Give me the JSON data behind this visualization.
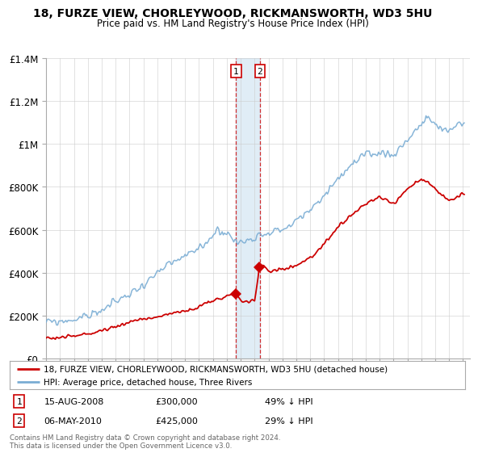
{
  "title": "18, FURZE VIEW, CHORLEYWOOD, RICKMANSWORTH, WD3 5HU",
  "subtitle": "Price paid vs. HM Land Registry's House Price Index (HPI)",
  "legend_line1": "18, FURZE VIEW, CHORLEYWOOD, RICKMANSWORTH, WD3 5HU (detached house)",
  "legend_line2": "HPI: Average price, detached house, Three Rivers",
  "footer": "Contains HM Land Registry data © Crown copyright and database right 2024.\nThis data is licensed under the Open Government Licence v3.0.",
  "transaction1": {
    "label": "1",
    "date": "15-AUG-2008",
    "price": "£300,000",
    "hpi": "49% ↓ HPI"
  },
  "transaction2": {
    "label": "2",
    "date": "06-MAY-2010",
    "price": "£425,000",
    "hpi": "29% ↓ HPI"
  },
  "hpi_color": "#7aadd4",
  "price_color": "#cc0000",
  "marker_color": "#cc0000",
  "vline_color": "#cc0000",
  "shade_color": "#c8dff0",
  "bg_color": "#ffffff",
  "grid_color": "#cccccc",
  "ylim": [
    0,
    1400000
  ],
  "yticks": [
    0,
    200000,
    400000,
    600000,
    800000,
    1000000,
    1200000,
    1400000
  ],
  "ytick_labels": [
    "£0",
    "£200K",
    "£400K",
    "£600K",
    "£800K",
    "£1M",
    "£1.2M",
    "£1.4M"
  ],
  "year_start": 1995,
  "year_end": 2025,
  "hpi_anchors_x": [
    1995.0,
    1996.0,
    1997.0,
    1998.0,
    1999.0,
    2000.0,
    2001.5,
    2002.5,
    2003.5,
    2004.5,
    2005.5,
    2006.5,
    2007.3,
    2008.0,
    2008.7,
    2009.3,
    2010.0,
    2010.5,
    2011.0,
    2012.0,
    2013.0,
    2014.0,
    2015.0,
    2016.0,
    2017.0,
    2017.8,
    2018.5,
    2019.0,
    2020.0,
    2021.0,
    2021.8,
    2022.5,
    2023.0,
    2023.5,
    2024.0,
    2024.5,
    2025.0
  ],
  "hpi_anchors_y": [
    170000,
    172000,
    182000,
    200000,
    225000,
    265000,
    320000,
    370000,
    420000,
    460000,
    490000,
    540000,
    600000,
    585000,
    540000,
    545000,
    570000,
    580000,
    590000,
    600000,
    640000,
    690000,
    760000,
    840000,
    900000,
    940000,
    950000,
    960000,
    950000,
    1020000,
    1080000,
    1120000,
    1090000,
    1060000,
    1060000,
    1090000,
    1100000
  ],
  "price_anchors_x": [
    1995.0,
    1996.0,
    1997.0,
    1998.0,
    1999.0,
    2000.0,
    2001.0,
    2002.0,
    2003.0,
    2004.0,
    2005.0,
    2006.0,
    2007.0,
    2007.8,
    2008.3,
    2008.67,
    2009.0,
    2009.5,
    2010.0,
    2010.37,
    2010.7,
    2011.0,
    2012.0,
    2013.0,
    2014.0,
    2015.0,
    2016.0,
    2017.0,
    2018.0,
    2018.5,
    2019.0,
    2020.0,
    2021.0,
    2022.0,
    2022.5,
    2023.0,
    2023.5,
    2024.0,
    2024.5,
    2025.0
  ],
  "price_anchors_y": [
    95000,
    98000,
    105000,
    115000,
    130000,
    150000,
    170000,
    185000,
    195000,
    210000,
    220000,
    240000,
    270000,
    285000,
    295000,
    300000,
    270000,
    265000,
    270000,
    425000,
    430000,
    410000,
    415000,
    435000,
    470000,
    530000,
    610000,
    670000,
    720000,
    740000,
    750000,
    720000,
    790000,
    840000,
    820000,
    790000,
    760000,
    740000,
    750000,
    770000
  ],
  "t1_year": 2008.67,
  "t2_year": 2010.37,
  "t1_price": 300000,
  "t2_price": 425000
}
